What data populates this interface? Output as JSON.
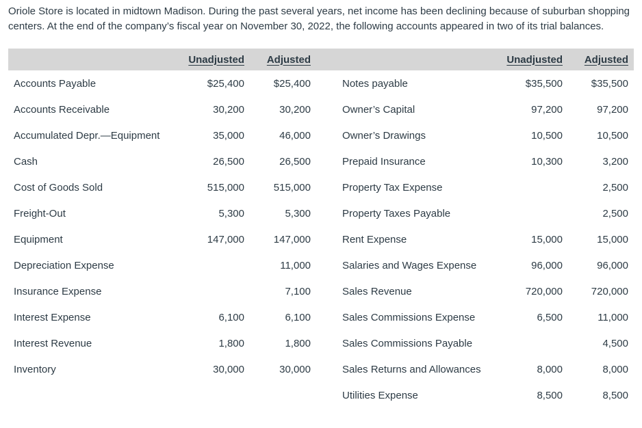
{
  "colors": {
    "text": "#2d3b45",
    "header_bg": "#d6d6d6"
  },
  "intro": "Oriole Store is located in midtown Madison. During the past several years, net income has been declining because of suburban shopping centers. At the end of the company’s fiscal year on November 30, 2022, the following accounts appeared in two of its trial balances.",
  "table": {
    "headers": {
      "unadjusted": "Unadjusted",
      "adjusted": "Adjusted"
    },
    "left_rows": [
      {
        "account": "Accounts Payable",
        "unadjusted": "$25,400",
        "adjusted": "$25,400"
      },
      {
        "account": "Accounts Receivable",
        "unadjusted": "30,200",
        "adjusted": "30,200"
      },
      {
        "account": "Accumulated Depr.—Equipment",
        "unadjusted": "35,000",
        "adjusted": "46,000"
      },
      {
        "account": "Cash",
        "unadjusted": "26,500",
        "adjusted": "26,500"
      },
      {
        "account": "Cost of Goods Sold",
        "unadjusted": "515,000",
        "adjusted": "515,000"
      },
      {
        "account": "Freight-Out",
        "unadjusted": "5,300",
        "adjusted": "5,300"
      },
      {
        "account": "Equipment",
        "unadjusted": "147,000",
        "adjusted": "147,000"
      },
      {
        "account": "Depreciation Expense",
        "unadjusted": "",
        "adjusted": "11,000"
      },
      {
        "account": "Insurance Expense",
        "unadjusted": "",
        "adjusted": "7,100"
      },
      {
        "account": "Interest Expense",
        "unadjusted": "6,100",
        "adjusted": "6,100"
      },
      {
        "account": "Interest Revenue",
        "unadjusted": "1,800",
        "adjusted": "1,800"
      },
      {
        "account": "Inventory",
        "unadjusted": "30,000",
        "adjusted": "30,000"
      }
    ],
    "right_rows": [
      {
        "account": "Notes payable",
        "unadjusted": "$35,500",
        "adjusted": "$35,500"
      },
      {
        "account": "Owner’s Capital",
        "unadjusted": "97,200",
        "adjusted": "97,200"
      },
      {
        "account": "Owner’s Drawings",
        "unadjusted": "10,500",
        "adjusted": "10,500"
      },
      {
        "account": "Prepaid Insurance",
        "unadjusted": "10,300",
        "adjusted": "3,200"
      },
      {
        "account": "Property Tax Expense",
        "unadjusted": "",
        "adjusted": "2,500"
      },
      {
        "account": "Property Taxes Payable",
        "unadjusted": "",
        "adjusted": "2,500"
      },
      {
        "account": "Rent Expense",
        "unadjusted": "15,000",
        "adjusted": "15,000"
      },
      {
        "account": "Salaries and Wages Expense",
        "unadjusted": "96,000",
        "adjusted": "96,000"
      },
      {
        "account": "Sales Revenue",
        "unadjusted": "720,000",
        "adjusted": "720,000"
      },
      {
        "account": "Sales Commissions Expense",
        "unadjusted": "6,500",
        "adjusted": "11,000"
      },
      {
        "account": "Sales Commissions Payable",
        "unadjusted": "",
        "adjusted": "4,500"
      },
      {
        "account": "Sales Returns and Allowances",
        "unadjusted": "8,000",
        "adjusted": "8,000"
      },
      {
        "account": "Utilities Expense",
        "unadjusted": "8,500",
        "adjusted": "8,500"
      }
    ]
  }
}
